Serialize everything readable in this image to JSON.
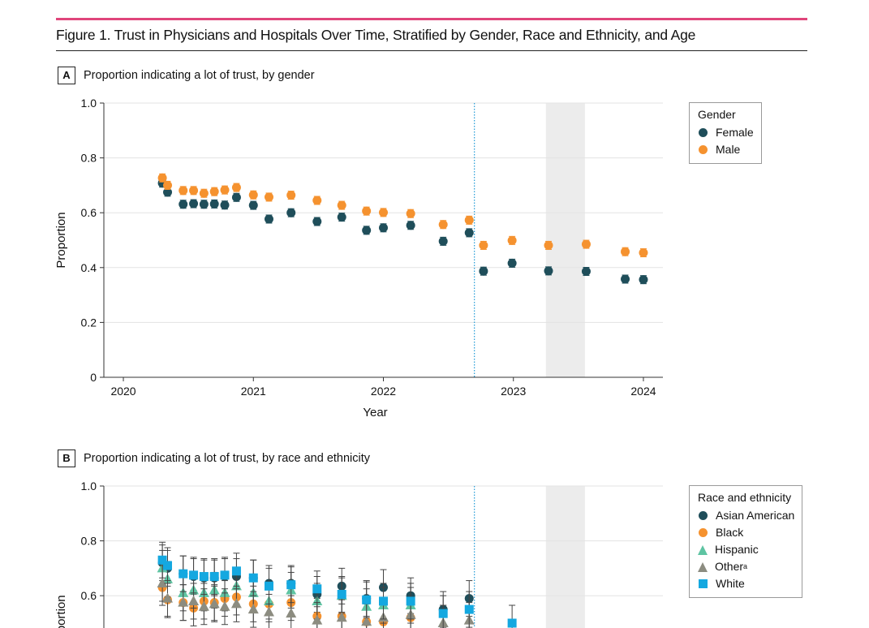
{
  "figure": {
    "title": "Figure 1. Trust in Physicians and Hospitals Over Time, Stratified by Gender, Race and Ethnicity, and Age"
  },
  "colors": {
    "accent_rule": "#e0457b",
    "female": "#1f4e5a",
    "male": "#f5922f",
    "asian_american": "#1f4e5a",
    "black": "#f5922f",
    "hispanic": "#5ec4a2",
    "other": "#8c8c80",
    "white": "#14a8e0",
    "vline": "#1f9ad6",
    "shade": "#ececec"
  },
  "chart_data": [
    {
      "panel": "A",
      "type": "scatter",
      "title": "Proportion indicating a lot of trust, by gender",
      "xlabel": "Year",
      "ylabel": "Proportion",
      "xlim": [
        2019.85,
        2024.15
      ],
      "ylim": [
        0,
        1.0
      ],
      "x_ticks": [
        "2020",
        "2021",
        "2022",
        "2023",
        "2024"
      ],
      "y_ticks": [
        "0",
        "0.2",
        "0.4",
        "0.6",
        "0.8",
        "1.0"
      ],
      "vline_x": 2022.7,
      "shaded_range": [
        2023.25,
        2023.55
      ],
      "grid": "horizontal",
      "legend": {
        "title": "Gender",
        "position": "right"
      },
      "series": [
        {
          "name": "Female",
          "marker": "circle",
          "x": [
            2020.3,
            2020.34,
            2020.46,
            2020.54,
            2020.62,
            2020.7,
            2020.78,
            2020.87,
            2021.0,
            2021.12,
            2021.29,
            2021.49,
            2021.68,
            2021.87,
            2022.0,
            2022.21,
            2022.46,
            2022.66,
            2022.77,
            2022.99,
            2023.27,
            2023.56,
            2023.86,
            2024.0
          ],
          "y": [
            0.708,
            0.675,
            0.631,
            0.633,
            0.631,
            0.632,
            0.628,
            0.656,
            0.627,
            0.577,
            0.6,
            0.568,
            0.584,
            0.536,
            0.545,
            0.554,
            0.496,
            0.527,
            0.387,
            0.416,
            0.388,
            0.386,
            0.358,
            0.356
          ]
        },
        {
          "name": "Male",
          "marker": "circle",
          "x": [
            2020.3,
            2020.34,
            2020.46,
            2020.54,
            2020.62,
            2020.7,
            2020.78,
            2020.87,
            2021.0,
            2021.12,
            2021.29,
            2021.49,
            2021.68,
            2021.87,
            2022.0,
            2022.21,
            2022.46,
            2022.66,
            2022.77,
            2022.99,
            2023.27,
            2023.56,
            2023.86,
            2024.0
          ],
          "y": [
            0.727,
            0.7,
            0.681,
            0.681,
            0.671,
            0.677,
            0.683,
            0.692,
            0.665,
            0.657,
            0.664,
            0.645,
            0.627,
            0.606,
            0.601,
            0.597,
            0.557,
            0.573,
            0.481,
            0.499,
            0.481,
            0.485,
            0.458,
            0.454
          ]
        }
      ]
    },
    {
      "panel": "B",
      "type": "scatter",
      "title": "Proportion indicating a lot of trust, by race and ethnicity",
      "ylabel": "Proportion",
      "xlim": [
        2019.85,
        2024.15
      ],
      "ylim": [
        0,
        1.0
      ],
      "y_ticks": [
        "0.6",
        "0.8",
        "1.0"
      ],
      "vline_x": 2022.7,
      "shaded_range": [
        2023.25,
        2023.55
      ],
      "grid": "horizontal",
      "legend": {
        "title": "Race and ethnicity",
        "title_superscript": "",
        "position": "right"
      },
      "series": [
        {
          "name": "Asian American",
          "marker": "circle",
          "x": [
            2020.3,
            2020.34,
            2020.46,
            2020.54,
            2020.62,
            2020.7,
            2020.78,
            2020.87,
            2021.0,
            2021.12,
            2021.29,
            2021.49,
            2021.68,
            2021.87,
            2022.0,
            2022.21,
            2022.46,
            2022.66
          ],
          "y": [
            0.72,
            0.7,
            0.68,
            0.67,
            0.665,
            0.665,
            0.67,
            0.67,
            0.665,
            0.645,
            0.645,
            0.605,
            0.635,
            0.59,
            0.63,
            0.6,
            0.55,
            0.59
          ]
        },
        {
          "name": "Black",
          "marker": "circle",
          "x": [
            2020.3,
            2020.34,
            2020.46,
            2020.54,
            2020.62,
            2020.7,
            2020.78,
            2020.87,
            2021.0,
            2021.12,
            2021.29,
            2021.49,
            2021.68,
            2021.87,
            2022.0,
            2022.21
          ],
          "y": [
            0.63,
            0.585,
            0.575,
            0.555,
            0.58,
            0.575,
            0.59,
            0.595,
            0.57,
            0.57,
            0.575,
            0.525,
            0.525,
            0.505,
            0.505,
            0.52
          ]
        },
        {
          "name": "Hispanic",
          "marker": "triangle",
          "x": [
            2020.3,
            2020.34,
            2020.46,
            2020.54,
            2020.62,
            2020.7,
            2020.78,
            2020.87,
            2021.0,
            2021.12,
            2021.29,
            2021.49,
            2021.68,
            2021.87,
            2022.0,
            2022.21,
            2022.46
          ],
          "y": [
            0.7,
            0.66,
            0.61,
            0.62,
            0.61,
            0.62,
            0.61,
            0.635,
            0.61,
            0.58,
            0.62,
            0.58,
            0.6,
            0.56,
            0.565,
            0.565,
            0.5
          ]
        },
        {
          "name": "Other",
          "name_superscript": "a",
          "marker": "triangle",
          "x": [
            2020.3,
            2020.34,
            2020.46,
            2020.54,
            2020.62,
            2020.7,
            2020.78,
            2020.87,
            2021.0,
            2021.12,
            2021.29,
            2021.49,
            2021.68,
            2021.87,
            2022.0,
            2022.21,
            2022.46,
            2022.66
          ],
          "y": [
            0.645,
            0.59,
            0.575,
            0.58,
            0.56,
            0.57,
            0.56,
            0.57,
            0.55,
            0.54,
            0.535,
            0.51,
            0.52,
            0.505,
            0.52,
            0.53,
            0.5,
            0.51
          ]
        },
        {
          "name": "White",
          "marker": "square",
          "x": [
            2020.3,
            2020.34,
            2020.46,
            2020.54,
            2020.62,
            2020.7,
            2020.78,
            2020.87,
            2021.0,
            2021.12,
            2021.29,
            2021.49,
            2021.68,
            2021.87,
            2022.0,
            2022.21,
            2022.46,
            2022.66,
            2022.99
          ],
          "y": [
            0.73,
            0.71,
            0.68,
            0.675,
            0.67,
            0.67,
            0.675,
            0.69,
            0.665,
            0.635,
            0.64,
            0.625,
            0.605,
            0.585,
            0.58,
            0.58,
            0.535,
            0.55,
            0.5
          ]
        }
      ]
    }
  ]
}
